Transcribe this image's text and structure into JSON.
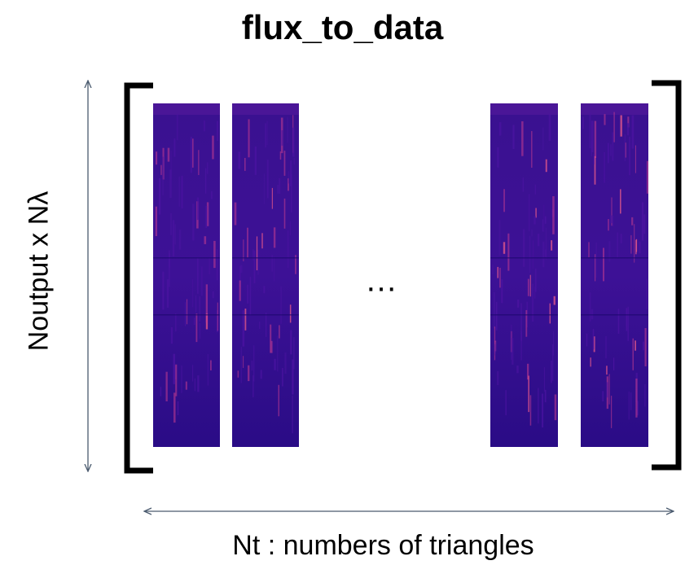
{
  "diagram": {
    "title": "flux_to_data",
    "y_dimension_label": "Noutput x Nλ",
    "x_dimension_label": "Nt : numbers of triangles",
    "ellipsis": "…",
    "colors": {
      "panel_base": "#2e0d8a",
      "panel_mid": "#4a13a0",
      "streak_warm": "#c43d8f",
      "streak_hot": "#e8598a",
      "bracket": "#000000",
      "arrow": "#4a5a6e"
    },
    "matrix_columns": [
      {
        "name": "column-1"
      },
      {
        "name": "column-2"
      },
      {
        "name": "column-n-minus-1"
      },
      {
        "name": "column-n"
      }
    ]
  }
}
